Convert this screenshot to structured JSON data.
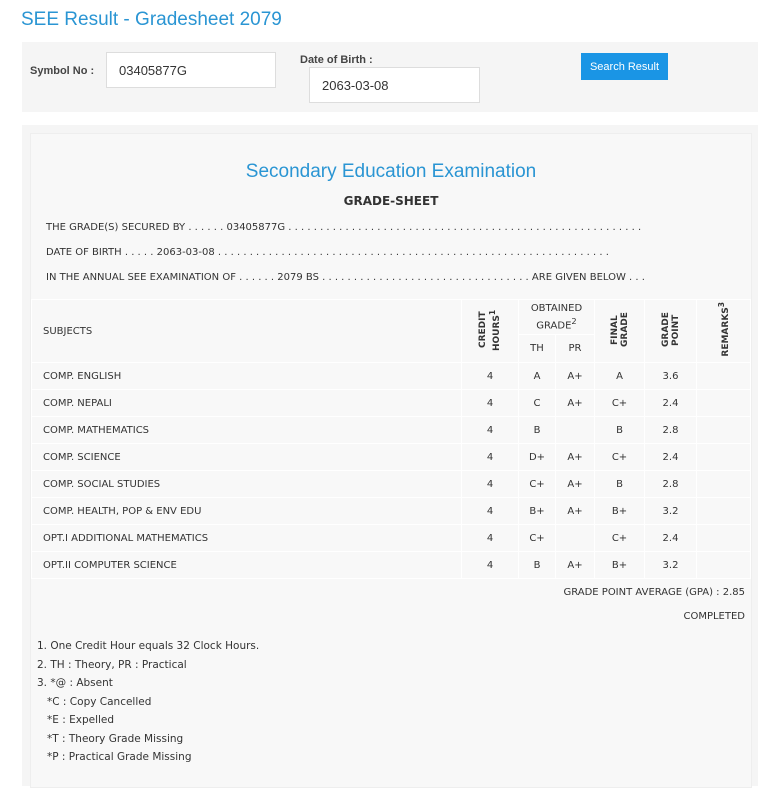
{
  "page_title": "SEE Result - Gradesheet 2079",
  "search": {
    "symbol_label": "Symbol No :",
    "symbol_value": "03405877G",
    "dob_label": "Date of Birth :",
    "dob_value": "2063-03-08",
    "button": "Search Result"
  },
  "sheet": {
    "heading": "Secondary Education Examination",
    "subheading": "GRADE-SHEET",
    "line1": "THE GRADE(S) SECURED BY . . . . . . 03405877G . . . . . . . . . . . . . . . . . . . . . . . . . . . . . . . . . . . . . . . . . . . . . . . . . . . . . . . .",
    "line2": "DATE OF BIRTH . . . . . 2063-03-08 . . . . . . . . . . . . . . . . . . . . . . . . . . . . . . . . . . . . . . . . . . . . . . . . . . . . . . . . . . . . . .",
    "line3": "IN THE ANNUAL SEE EXAMINATION OF . . . . . . 2079 BS . . . . . . . . . . . . . . . . . . . . . . . . . . . . . . . . . ARE GIVEN BELOW . . .",
    "headers": {
      "subjects": "SUBJECTS",
      "credit": "CREDIT HOURS",
      "credit_sup": "1",
      "obtained": "OBTAINED GRADE",
      "obtained_sup": "2",
      "th": "TH",
      "pr": "PR",
      "final": "FINAL GRADE",
      "gp": "GRADE POINT",
      "remarks": "REMARKS",
      "remarks_sup": "3"
    },
    "rows": [
      {
        "subject": "COMP. ENGLISH",
        "credit": "4",
        "th": "A",
        "pr": "A+",
        "final": "A",
        "gp": "3.6"
      },
      {
        "subject": "COMP. NEPALI",
        "credit": "4",
        "th": "C",
        "pr": "A+",
        "final": "C+",
        "gp": "2.4"
      },
      {
        "subject": "COMP. MATHEMATICS",
        "credit": "4",
        "th": "B",
        "pr": "",
        "final": "B",
        "gp": "2.8"
      },
      {
        "subject": "COMP. SCIENCE",
        "credit": "4",
        "th": "D+",
        "pr": "A+",
        "final": "C+",
        "gp": "2.4"
      },
      {
        "subject": "COMP. SOCIAL STUDIES",
        "credit": "4",
        "th": "C+",
        "pr": "A+",
        "final": "B",
        "gp": "2.8"
      },
      {
        "subject": "COMP. HEALTH, POP & ENV EDU",
        "credit": "4",
        "th": "B+",
        "pr": "A+",
        "final": "B+",
        "gp": "3.2"
      },
      {
        "subject": "OPT.I ADDITIONAL MATHEMATICS",
        "credit": "4",
        "th": "C+",
        "pr": "",
        "final": "C+",
        "gp": "2.4"
      },
      {
        "subject": "OPT.II COMPUTER SCIENCE",
        "credit": "4",
        "th": "B",
        "pr": "A+",
        "final": "B+",
        "gp": "3.2"
      }
    ],
    "gpa": "GRADE POINT AVERAGE (GPA) : 2.85",
    "status": "COMPLETED",
    "notes": [
      "1. One Credit Hour equals 32 Clock Hours.",
      "2. TH : Theory, PR : Practical",
      "3. *@ : Absent",
      "   *C : Copy Cancelled",
      "   *E : Expelled",
      "   *T : Theory Grade Missing",
      "   *P : Practical Grade Missing"
    ]
  }
}
